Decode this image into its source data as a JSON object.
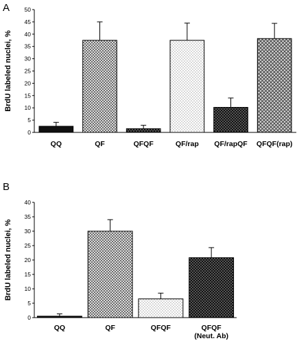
{
  "chart_data": [
    {
      "type": "bar",
      "panel": "A",
      "ylabel": "BrdU labeled nuclei, %",
      "ylim": [
        0,
        50
      ],
      "yticks": [
        0,
        5,
        10,
        15,
        20,
        25,
        30,
        35,
        40,
        45,
        50
      ],
      "categories": [
        "QQ",
        "QF",
        "QFQF",
        "QF/rap",
        "QF/rapQF",
        "QFQF(rap)"
      ],
      "values": [
        2.5,
        37.5,
        1.5,
        37.5,
        10.2,
        38.2
      ],
      "errors": [
        1.6,
        7.5,
        1.4,
        7.0,
        3.8,
        6.2
      ],
      "patterns": [
        "solid-dark",
        "dense-cross",
        "dark-dots",
        "sparse-dots",
        "dark-dots",
        "cross-gray"
      ],
      "grid": false,
      "legend": "none"
    },
    {
      "type": "bar",
      "panel": "B",
      "ylabel": "BrdU labeled nuclei, %",
      "ylim": [
        0,
        40
      ],
      "yticks": [
        0,
        5,
        10,
        15,
        20,
        25,
        30,
        35,
        40
      ],
      "categories": [
        "QQ",
        "QF",
        "QFQF",
        "QFQF\n(Neut. Ab)"
      ],
      "values": [
        0.5,
        30.0,
        6.5,
        20.8
      ],
      "errors": [
        0.8,
        4.0,
        2.0,
        3.5
      ],
      "patterns": [
        "solid-dark",
        "dense-cross",
        "sparse-dots",
        "dark-dots"
      ],
      "grid": false,
      "legend": "none"
    }
  ]
}
